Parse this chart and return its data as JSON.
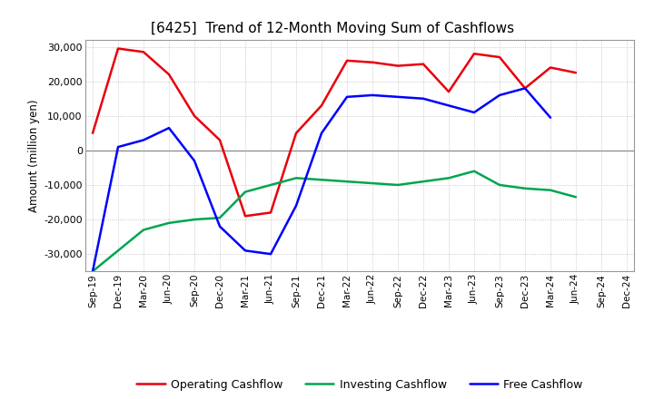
{
  "title": "[6425]  Trend of 12-Month Moving Sum of Cashflows",
  "ylabel": "Amount (million yen)",
  "x_labels": [
    "Sep-19",
    "Dec-19",
    "Mar-20",
    "Jun-20",
    "Sep-20",
    "Dec-20",
    "Mar-21",
    "Jun-21",
    "Sep-21",
    "Dec-21",
    "Mar-22",
    "Jun-22",
    "Sep-22",
    "Dec-22",
    "Mar-23",
    "Jun-23",
    "Sep-23",
    "Dec-23",
    "Mar-24",
    "Jun-24",
    "Sep-24",
    "Dec-24"
  ],
  "operating_cashflow": [
    5000,
    29500,
    28500,
    22000,
    10000,
    3000,
    -19000,
    -18000,
    5000,
    13000,
    26000,
    25500,
    24500,
    25000,
    17000,
    28000,
    27000,
    18000,
    24000,
    22500,
    null,
    null
  ],
  "investing_cashflow": [
    -35000,
    -29000,
    -23000,
    -21000,
    -20000,
    -19500,
    -12000,
    -10000,
    -8000,
    -8500,
    -9000,
    -9500,
    -10000,
    -9000,
    -8000,
    -6000,
    -10000,
    -11000,
    -11500,
    -13500,
    null,
    null
  ],
  "free_cashflow": [
    -35000,
    1000,
    3000,
    6500,
    -3000,
    -22000,
    -29000,
    -30000,
    -16000,
    5000,
    15500,
    16000,
    15500,
    15000,
    13000,
    11000,
    16000,
    18000,
    9500,
    null,
    null,
    null
  ],
  "ylim": [
    -35000,
    32000
  ],
  "yticks": [
    -30000,
    -20000,
    -10000,
    0,
    10000,
    20000,
    30000
  ],
  "operating_color": "#e8000d",
  "investing_color": "#00a550",
  "free_color": "#0000ff",
  "bg_color": "#ffffff",
  "grid_color": "#aaaaaa",
  "legend_labels": [
    "Operating Cashflow",
    "Investing Cashflow",
    "Free Cashflow"
  ]
}
